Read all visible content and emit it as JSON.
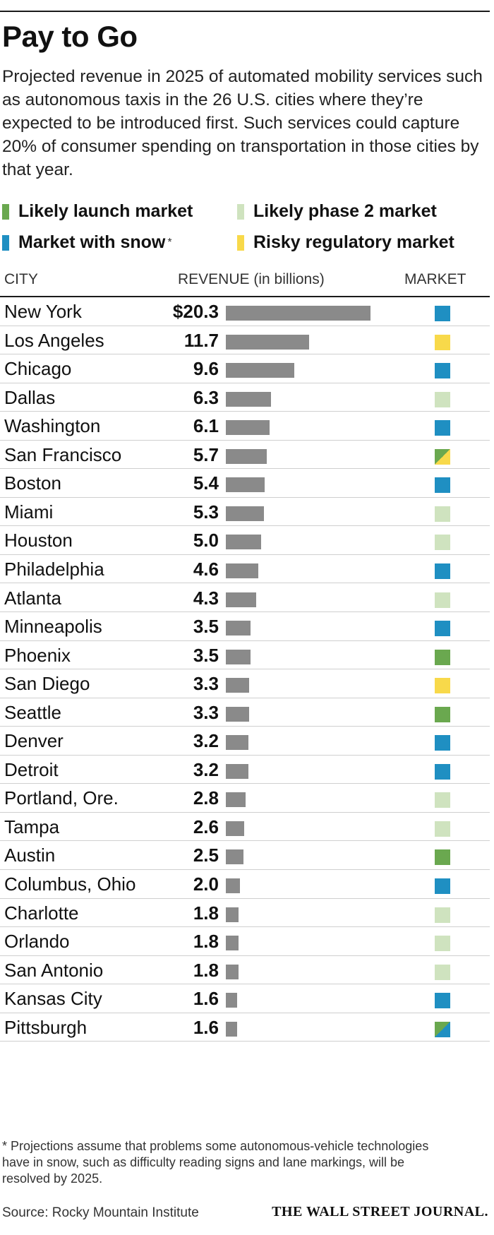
{
  "title": "Pay to Go",
  "subtitle": "Projected revenue in 2025 of automated mobility services such as autonomous taxis in the 26 U.S. cities where they’re expected to be introduced first. Such services could capture 20% of consumer spending on transportation in those cities by that year.",
  "legend": [
    {
      "key": "launch",
      "label": "Likely launch market",
      "color": "#6aa84f"
    },
    {
      "key": "phase2",
      "label": "Likely phase 2 market",
      "color": "#cfe3bf"
    },
    {
      "key": "snow",
      "label": "Market with snow",
      "color": "#1f8fc2",
      "marker": "*"
    },
    {
      "key": "risky",
      "label": "Risky regulatory market",
      "color": "#f8d94a"
    }
  ],
  "headers": {
    "city": "CITY",
    "revenue": "REVENUE (in billions)",
    "market": "MARKET"
  },
  "chart_data": {
    "type": "bar",
    "orientation": "horizontal",
    "title": "Pay to Go",
    "xlabel": "REVENUE (in billions)",
    "categories": [
      "New York",
      "Los Angeles",
      "Chicago",
      "Dallas",
      "Washington",
      "San Francisco",
      "Boston",
      "Miami",
      "Houston",
      "Philadelphia",
      "Atlanta",
      "Minneapolis",
      "Phoenix",
      "San Diego",
      "Seattle",
      "Denver",
      "Detroit",
      "Portland, Ore.",
      "Tampa",
      "Austin",
      "Columbus, Ohio",
      "Charlotte",
      "Orlando",
      "San Antonio",
      "Kansas City",
      "Pittsburgh"
    ],
    "values": [
      20.3,
      11.7,
      9.6,
      6.3,
      6.1,
      5.7,
      5.4,
      5.3,
      5.0,
      4.6,
      4.3,
      3.5,
      3.5,
      3.3,
      3.3,
      3.2,
      3.2,
      2.8,
      2.6,
      2.5,
      2.0,
      1.8,
      1.8,
      1.8,
      1.6,
      1.6
    ],
    "value_labels": [
      "$20.3",
      "11.7",
      "9.6",
      "6.3",
      "6.1",
      "5.7",
      "5.4",
      "5.3",
      "5.0",
      "4.6",
      "4.3",
      "3.5",
      "3.5",
      "3.3",
      "3.3",
      "3.2",
      "3.2",
      "2.8",
      "2.6",
      "2.5",
      "2.0",
      "1.8",
      "1.8",
      "1.8",
      "1.6",
      "1.6"
    ],
    "market": [
      [
        "snow"
      ],
      [
        "risky"
      ],
      [
        "snow"
      ],
      [
        "phase2"
      ],
      [
        "snow"
      ],
      [
        "launch",
        "risky"
      ],
      [
        "snow"
      ],
      [
        "phase2"
      ],
      [
        "phase2"
      ],
      [
        "snow"
      ],
      [
        "phase2"
      ],
      [
        "snow"
      ],
      [
        "launch"
      ],
      [
        "risky"
      ],
      [
        "launch"
      ],
      [
        "snow"
      ],
      [
        "snow"
      ],
      [
        "phase2"
      ],
      [
        "phase2"
      ],
      [
        "launch"
      ],
      [
        "snow"
      ],
      [
        "phase2"
      ],
      [
        "phase2"
      ],
      [
        "phase2"
      ],
      [
        "snow"
      ],
      [
        "launch",
        "snow"
      ]
    ],
    "bar_color": "#8a8a8a",
    "xlim": [
      0,
      20.3
    ]
  },
  "footnote": "* Projections assume that problems some autonomous-vehicle technologies have in snow, such as difficulty reading signs and lane markings, will be resolved by 2025.",
  "source": "Source: Rocky Mountain Institute",
  "publisher": "THE WALL STREET JOURNAL."
}
